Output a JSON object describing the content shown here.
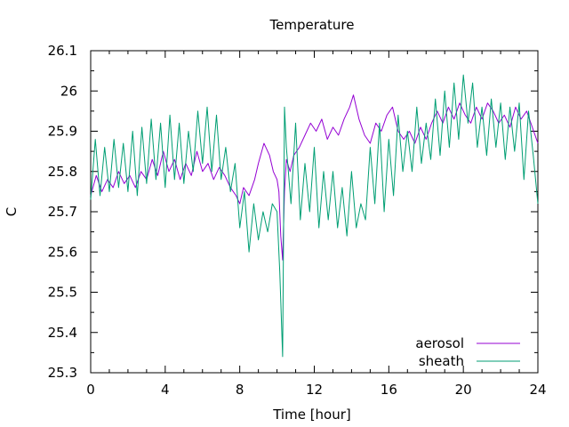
{
  "chart_data": {
    "type": "line",
    "title": "Temperature",
    "xlabel": "Time [hour]",
    "ylabel": "C",
    "xlim": [
      0,
      24
    ],
    "ylim": [
      25.3,
      26.1
    ],
    "xticks": [
      0,
      4,
      8,
      12,
      16,
      20,
      24
    ],
    "yticks": [
      25.3,
      25.4,
      25.5,
      25.6,
      25.7,
      25.8,
      25.9,
      26.0,
      26.1
    ],
    "ytick_labels": [
      "25.3",
      "25.4",
      "25.5",
      "25.6",
      "25.7",
      "25.8",
      "25.9",
      "26",
      "26.1"
    ],
    "grid": false,
    "legend_position": "bottom-right",
    "series": [
      {
        "name": "aerosol",
        "color": "#9400d3",
        "x": [
          0,
          0.3,
          0.6,
          0.9,
          1.2,
          1.5,
          1.8,
          2.1,
          2.4,
          2.7,
          3.0,
          3.3,
          3.6,
          3.9,
          4.2,
          4.5,
          4.8,
          5.1,
          5.4,
          5.7,
          6.0,
          6.3,
          6.6,
          6.9,
          7.2,
          7.5,
          7.8,
          8.0,
          8.2,
          8.5,
          8.8,
          9.0,
          9.3,
          9.6,
          9.8,
          10.0,
          10.1,
          10.2,
          10.3,
          10.4,
          10.5,
          10.7,
          10.9,
          11.2,
          11.5,
          11.8,
          12.1,
          12.4,
          12.7,
          13.0,
          13.3,
          13.6,
          13.9,
          14.1,
          14.4,
          14.7,
          15.0,
          15.3,
          15.6,
          15.9,
          16.2,
          16.5,
          16.8,
          17.1,
          17.4,
          17.7,
          18.0,
          18.3,
          18.6,
          18.9,
          19.2,
          19.5,
          19.8,
          20.1,
          20.4,
          20.7,
          21.0,
          21.3,
          21.6,
          21.9,
          22.2,
          22.5,
          22.8,
          23.1,
          23.4,
          23.7,
          24.0
        ],
        "y": [
          25.74,
          25.79,
          25.75,
          25.78,
          25.76,
          25.8,
          25.77,
          25.79,
          25.76,
          25.8,
          25.78,
          25.83,
          25.79,
          25.85,
          25.8,
          25.83,
          25.78,
          25.82,
          25.79,
          25.85,
          25.8,
          25.82,
          25.78,
          25.81,
          25.79,
          25.76,
          25.74,
          25.72,
          25.76,
          25.74,
          25.78,
          25.82,
          25.87,
          25.84,
          25.8,
          25.78,
          25.75,
          25.64,
          25.58,
          25.75,
          25.83,
          25.8,
          25.84,
          25.86,
          25.89,
          25.92,
          25.9,
          25.93,
          25.88,
          25.91,
          25.89,
          25.93,
          25.96,
          25.99,
          25.93,
          25.89,
          25.87,
          25.92,
          25.9,
          25.94,
          25.96,
          25.9,
          25.88,
          25.9,
          25.87,
          25.91,
          25.88,
          25.92,
          25.95,
          25.92,
          25.96,
          25.93,
          25.97,
          25.94,
          25.92,
          25.96,
          25.93,
          25.97,
          25.95,
          25.92,
          25.94,
          25.91,
          25.96,
          25.93,
          25.95,
          25.91,
          25.87
        ]
      },
      {
        "name": "sheath",
        "color": "#009e73",
        "x": [
          0,
          0.25,
          0.5,
          0.75,
          1.0,
          1.25,
          1.5,
          1.75,
          2.0,
          2.25,
          2.5,
          2.75,
          3.0,
          3.25,
          3.5,
          3.75,
          4.0,
          4.25,
          4.5,
          4.75,
          5.0,
          5.25,
          5.5,
          5.75,
          6.0,
          6.25,
          6.5,
          6.75,
          7.0,
          7.25,
          7.5,
          7.75,
          8.0,
          8.25,
          8.5,
          8.75,
          9.0,
          9.25,
          9.5,
          9.75,
          10.0,
          10.15,
          10.3,
          10.4,
          10.5,
          10.75,
          11.0,
          11.25,
          11.5,
          11.75,
          12.0,
          12.25,
          12.5,
          12.75,
          13.0,
          13.25,
          13.5,
          13.75,
          14.0,
          14.25,
          14.5,
          14.75,
          15.0,
          15.25,
          15.5,
          15.75,
          16.0,
          16.25,
          16.5,
          16.75,
          17.0,
          17.25,
          17.5,
          17.75,
          18.0,
          18.25,
          18.5,
          18.75,
          19.0,
          19.25,
          19.5,
          19.75,
          20.0,
          20.25,
          20.5,
          20.75,
          21.0,
          21.25,
          21.5,
          21.75,
          22.0,
          22.25,
          22.5,
          22.75,
          23.0,
          23.25,
          23.5,
          23.75,
          24.0
        ],
        "y": [
          25.73,
          25.88,
          25.74,
          25.86,
          25.75,
          25.88,
          25.76,
          25.87,
          25.75,
          25.9,
          25.74,
          25.91,
          25.77,
          25.93,
          25.78,
          25.92,
          25.76,
          25.94,
          25.78,
          25.92,
          25.77,
          25.9,
          25.8,
          25.95,
          25.82,
          25.96,
          25.8,
          25.94,
          25.78,
          25.86,
          25.75,
          25.82,
          25.66,
          25.75,
          25.6,
          25.72,
          25.63,
          25.7,
          25.65,
          25.72,
          25.7,
          25.55,
          25.34,
          25.96,
          25.86,
          25.72,
          25.92,
          25.68,
          25.82,
          25.7,
          25.86,
          25.66,
          25.8,
          25.68,
          25.8,
          25.66,
          25.76,
          25.64,
          25.8,
          25.66,
          25.72,
          25.68,
          25.86,
          25.72,
          25.92,
          25.7,
          25.88,
          25.74,
          25.94,
          25.8,
          25.9,
          25.8,
          25.96,
          25.82,
          25.92,
          25.83,
          25.98,
          25.84,
          26.0,
          25.86,
          26.02,
          25.88,
          26.04,
          25.92,
          26.02,
          25.86,
          25.96,
          25.84,
          25.98,
          25.86,
          25.97,
          25.83,
          25.96,
          25.85,
          25.97,
          25.78,
          25.95,
          25.84,
          25.72
        ]
      }
    ]
  }
}
